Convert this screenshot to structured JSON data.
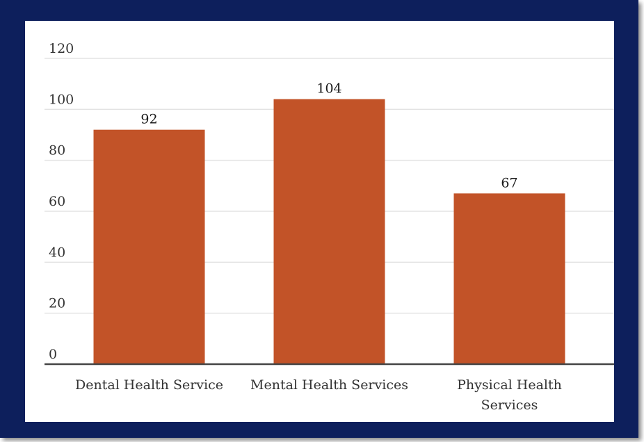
{
  "chart_data": {
    "type": "bar",
    "title": "",
    "xlabel": "",
    "ylabel": "",
    "categories": [
      [
        "Dental Health Service"
      ],
      [
        "Mental Health Services"
      ],
      [
        "Physical Health",
        "Services"
      ]
    ],
    "values": [
      92,
      104,
      67
    ],
    "yticks": [
      "0",
      "20",
      "40",
      "60",
      "80",
      "100",
      "120"
    ],
    "ylim": [
      0,
      120
    ],
    "grid": true,
    "data_labels": true,
    "colors": {
      "bar": "#c25328",
      "frame": "#0d1f5c",
      "grid": "#e3e3e3",
      "axis": "#444444"
    }
  }
}
